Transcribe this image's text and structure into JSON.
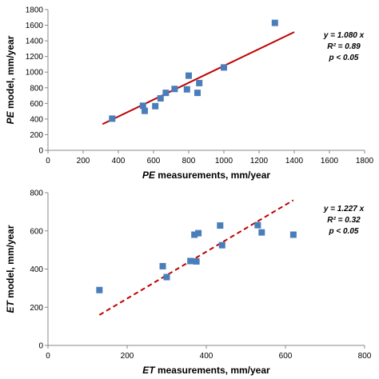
{
  "chart_data": [
    {
      "type": "scatter",
      "xlabel_italic": "PE",
      "xlabel_rest": " measurements, mm/year",
      "ylabel_italic": "PE",
      "ylabel_rest": " model, mm/year",
      "xlim": [
        0,
        1800
      ],
      "ylim": [
        0,
        1800
      ],
      "xticks": [
        0,
        200,
        400,
        600,
        800,
        1000,
        1200,
        1400,
        1600,
        1800
      ],
      "yticks": [
        0,
        200,
        400,
        600,
        800,
        1000,
        1200,
        1400,
        1600,
        1800
      ],
      "grid": false,
      "point_color": "#4a7ebb",
      "line_color": "#c00000",
      "line_style": "solid",
      "points": [
        {
          "x": 365,
          "y": 405
        },
        {
          "x": 540,
          "y": 570
        },
        {
          "x": 550,
          "y": 505
        },
        {
          "x": 610,
          "y": 565
        },
        {
          "x": 640,
          "y": 665
        },
        {
          "x": 670,
          "y": 735
        },
        {
          "x": 720,
          "y": 785
        },
        {
          "x": 790,
          "y": 780
        },
        {
          "x": 800,
          "y": 955
        },
        {
          "x": 850,
          "y": 735
        },
        {
          "x": 860,
          "y": 860
        },
        {
          "x": 1000,
          "y": 1060
        },
        {
          "x": 1290,
          "y": 1630
        }
      ],
      "fit": {
        "slope": 1.08,
        "x_start": 310,
        "x_end": 1400
      },
      "annotations": [
        "y = 1.080 x",
        "R² = 0.89",
        "p < 0.05"
      ]
    },
    {
      "type": "scatter",
      "xlabel_italic": "ET",
      "xlabel_rest": " measurements, mm/year",
      "ylabel_italic": "ET",
      "ylabel_rest": " model, mm/year",
      "xlim": [
        0,
        800
      ],
      "ylim": [
        0,
        800
      ],
      "xticks": [
        0,
        200,
        400,
        600,
        800
      ],
      "yticks": [
        0,
        200,
        400,
        600,
        800
      ],
      "grid": false,
      "point_color": "#4a7ebb",
      "line_color": "#c00000",
      "line_style": "dashed",
      "points": [
        {
          "x": 130,
          "y": 290
        },
        {
          "x": 290,
          "y": 415
        },
        {
          "x": 300,
          "y": 358
        },
        {
          "x": 360,
          "y": 442
        },
        {
          "x": 370,
          "y": 580
        },
        {
          "x": 375,
          "y": 440
        },
        {
          "x": 380,
          "y": 588
        },
        {
          "x": 435,
          "y": 628
        },
        {
          "x": 440,
          "y": 525
        },
        {
          "x": 530,
          "y": 630
        },
        {
          "x": 540,
          "y": 592
        },
        {
          "x": 620,
          "y": 580
        }
      ],
      "fit": {
        "slope": 1.227,
        "x_start": 130,
        "x_end": 620
      },
      "annotations": [
        "y = 1.227 x",
        "R² = 0.32",
        "p < 0.05"
      ]
    }
  ]
}
